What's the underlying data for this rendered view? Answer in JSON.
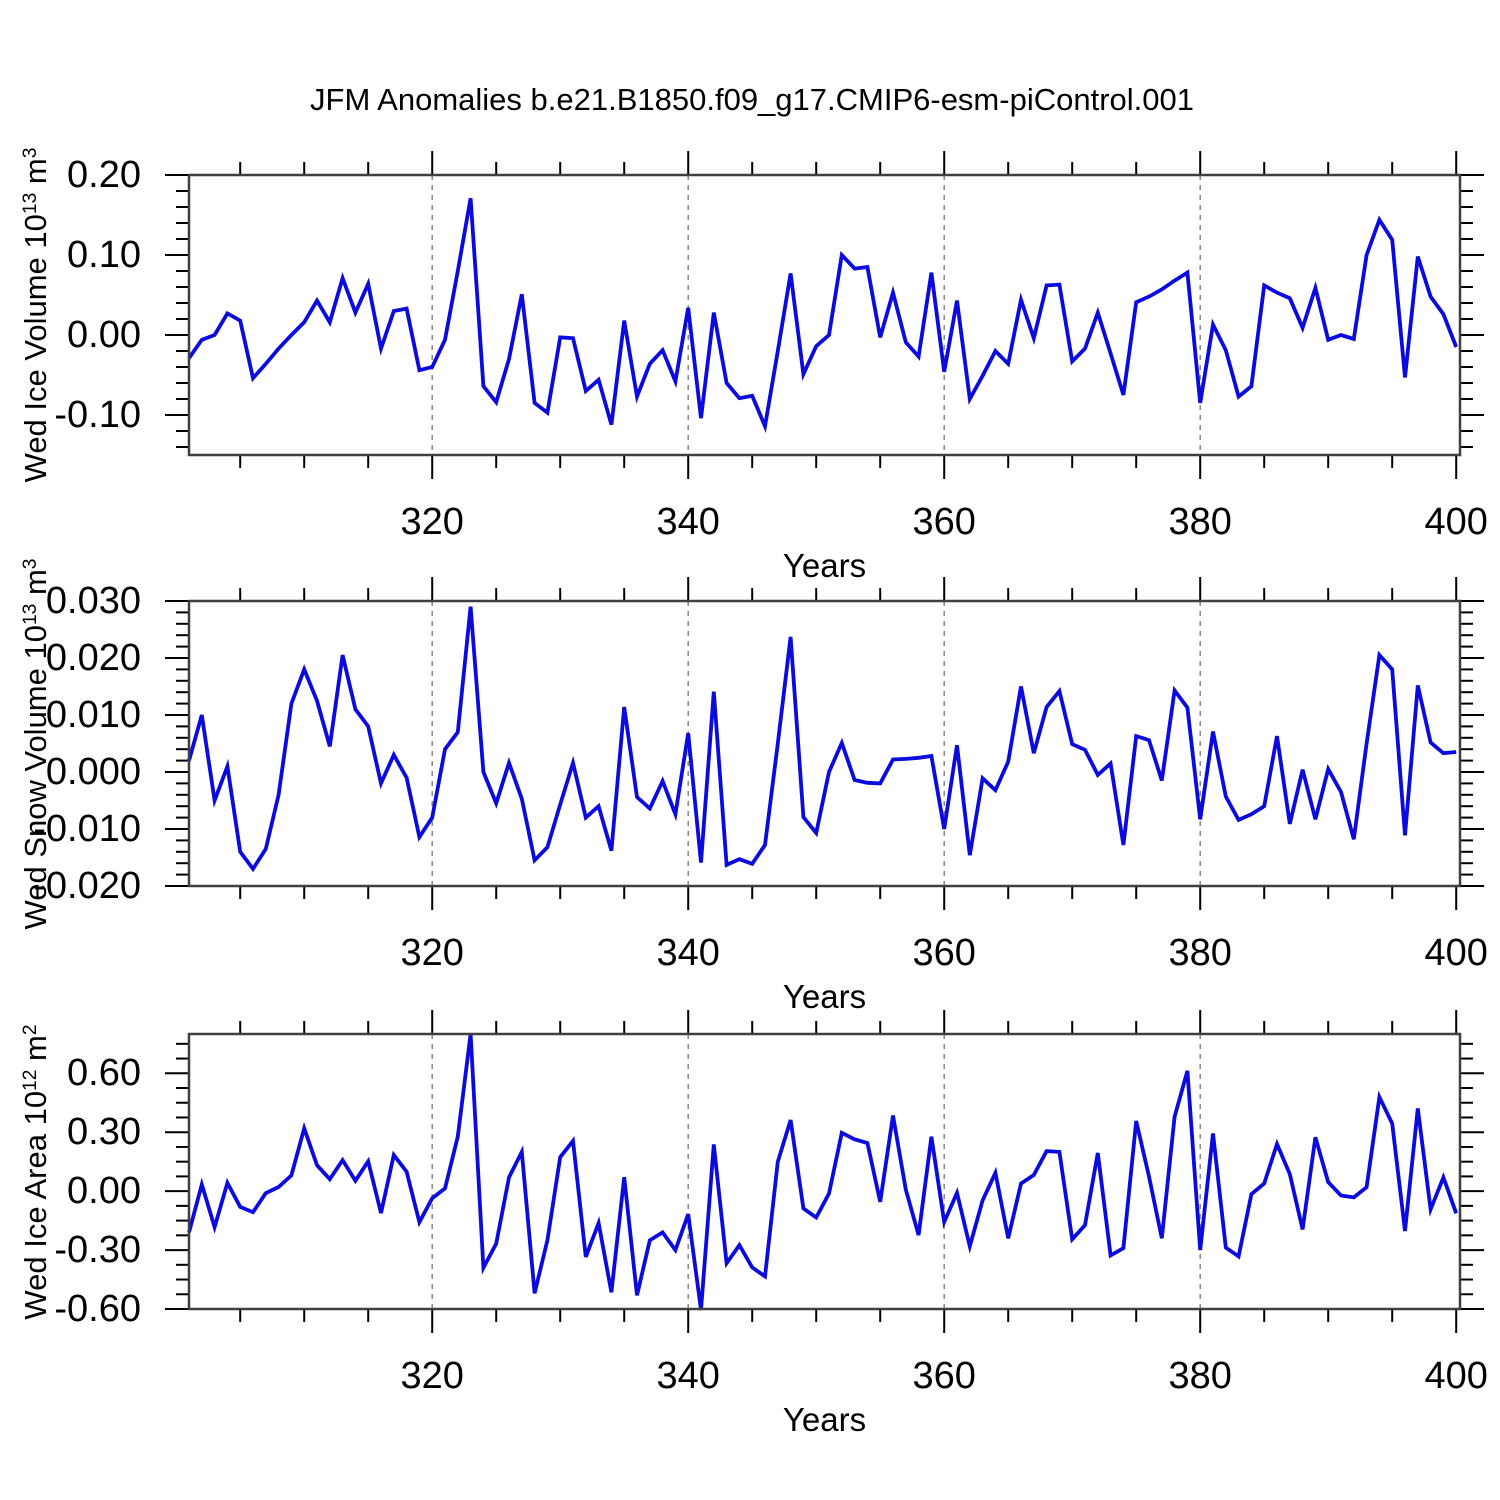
{
  "title": "JFM Anomalies b.e21.B1850.f09_g17.CMIP6-esm-piControl.001",
  "x_axis": {
    "label": "Years",
    "start_year": 301,
    "end_year": 400,
    "major_ticks": [
      320,
      340,
      360,
      380,
      400
    ],
    "major_tick_labels": [
      "320",
      "340",
      "360",
      "380",
      "400"
    ],
    "minor_tick_step": 5,
    "dashed_gridlines": [
      320,
      340,
      360,
      380
    ]
  },
  "style": {
    "line_color": "#0b0bdf",
    "frame_color": "#3f3f3f",
    "tick_color": "#000000",
    "grid_color": "#7f7f7f",
    "background": "#ffffff"
  },
  "chart_data": [
    {
      "type": "line",
      "panel": "wed_ice_volume",
      "ylabel": {
        "text": "Wed Ice Volume 10",
        "exp": "13",
        "unit": " m",
        "unit_exp": "3"
      },
      "xlabel": "Years",
      "ylim": [
        -0.15,
        0.2
      ],
      "ytick_step": 0.1,
      "yminor_step": 0.02,
      "yticks": [
        {
          "v": 0.2,
          "label": "0.20"
        },
        {
          "v": 0.1,
          "label": "0.10"
        },
        {
          "v": 0.0,
          "label": "0.00"
        },
        {
          "v": -0.1,
          "label": "-0.10"
        }
      ],
      "x_start": 301,
      "x_step": 1,
      "grid": false,
      "legend": "none",
      "values": [
        -0.029,
        -0.006,
        0.0,
        0.027,
        0.018,
        -0.054,
        -0.036,
        -0.017,
        0.0,
        0.016,
        0.043,
        0.016,
        0.071,
        0.028,
        0.064,
        -0.017,
        0.03,
        0.033,
        -0.044,
        -0.04,
        -0.006,
        0.08,
        0.171,
        -0.064,
        -0.084,
        -0.03,
        0.051,
        -0.085,
        -0.097,
        -0.003,
        -0.004,
        -0.07,
        -0.056,
        -0.112,
        0.018,
        -0.077,
        -0.036,
        -0.019,
        -0.058,
        0.034,
        -0.104,
        0.028,
        -0.06,
        -0.079,
        -0.076,
        -0.114,
        -0.02,
        0.077,
        -0.049,
        -0.014,
        0.0,
        0.1,
        0.083,
        0.085,
        -0.003,
        0.053,
        -0.009,
        -0.027,
        0.078,
        -0.046,
        0.043,
        -0.08,
        -0.051,
        -0.02,
        -0.036,
        0.044,
        -0.004,
        0.062,
        0.063,
        -0.033,
        -0.017,
        0.028,
        -0.023,
        -0.075,
        0.041,
        0.048,
        0.057,
        0.068,
        0.078,
        -0.085,
        0.013,
        -0.019,
        -0.077,
        -0.064,
        0.062,
        0.053,
        0.046,
        0.009,
        0.059,
        -0.006,
        0.0,
        -0.005,
        0.1,
        0.144,
        0.119,
        -0.053,
        0.098,
        0.048,
        0.026,
        -0.015
      ]
    },
    {
      "type": "line",
      "panel": "wed_snow_volume",
      "ylabel": {
        "text": "Wed Snow Volume 10",
        "exp": "13",
        "unit": " m",
        "unit_exp": "3"
      },
      "xlabel": "Years",
      "ylim": [
        -0.02,
        0.03
      ],
      "ytick_step": 0.01,
      "yminor_step": 0.002,
      "yticks": [
        {
          "v": 0.03,
          "label": "0.030"
        },
        {
          "v": 0.02,
          "label": "0.020"
        },
        {
          "v": 0.01,
          "label": "0.010"
        },
        {
          "v": 0.0,
          "label": "0.000"
        },
        {
          "v": -0.01,
          "label": "-0.010"
        },
        {
          "v": -0.02,
          "label": "-0.020"
        }
      ],
      "x_start": 301,
      "x_step": 1,
      "grid": false,
      "legend": "none",
      "values": [
        0.002,
        0.01,
        -0.005,
        0.001,
        -0.014,
        -0.017,
        -0.0135,
        -0.004,
        0.012,
        0.018,
        0.0125,
        0.0045,
        0.0205,
        0.011,
        0.008,
        -0.002,
        0.003,
        -0.001,
        -0.0114,
        -0.008,
        0.004,
        0.007,
        0.029,
        0.0,
        -0.0055,
        0.0016,
        -0.0047,
        -0.0155,
        -0.0132,
        -0.0057,
        0.0016,
        -0.008,
        -0.006,
        -0.0138,
        0.0114,
        -0.0044,
        -0.0064,
        -0.0016,
        -0.0074,
        0.0068,
        -0.0159,
        0.0141,
        -0.0163,
        -0.0153,
        -0.0161,
        -0.0128,
        0.005,
        0.0237,
        -0.0079,
        -0.0107,
        0.0,
        0.0051,
        -0.0014,
        -0.0019,
        -0.002,
        0.0022,
        0.0023,
        0.0025,
        0.0028,
        -0.01,
        0.0047,
        -0.0146,
        -0.0011,
        -0.0032,
        0.0018,
        0.015,
        0.0033,
        0.0114,
        0.0142,
        0.0049,
        0.0039,
        -0.0005,
        0.0015,
        -0.0128,
        0.0063,
        0.0056,
        -0.0015,
        0.0143,
        0.0113,
        -0.0083,
        0.0071,
        -0.0043,
        -0.0084,
        -0.0074,
        -0.006,
        0.0063,
        -0.0091,
        0.0004,
        -0.0083,
        0.0005,
        -0.0035,
        -0.0118,
        0.005,
        0.0205,
        0.018,
        -0.0111,
        0.0152,
        0.0052,
        0.0033,
        0.0035
      ]
    },
    {
      "type": "line",
      "panel": "wed_ice_area",
      "ylabel": {
        "text": "Wed Ice Area 10",
        "exp": "12",
        "unit": " m",
        "unit_exp": "2"
      },
      "xlabel": "Years",
      "ylim": [
        -0.6,
        0.8
      ],
      "ytick_step": 0.3,
      "yminor_step": 0.075,
      "yticks": [
        {
          "v": 0.6,
          "label": "0.60"
        },
        {
          "v": 0.3,
          "label": "0.30"
        },
        {
          "v": 0.0,
          "label": "0.00"
        },
        {
          "v": -0.3,
          "label": "-0.30"
        },
        {
          "v": -0.6,
          "label": "-0.60"
        }
      ],
      "x_start": 301,
      "x_step": 1,
      "grid": false,
      "legend": "none",
      "values": [
        -0.21,
        0.034,
        -0.183,
        0.042,
        -0.08,
        -0.107,
        -0.01,
        0.021,
        0.08,
        0.32,
        0.132,
        0.061,
        0.158,
        0.053,
        0.152,
        -0.112,
        0.184,
        0.099,
        -0.158,
        -0.036,
        0.014,
        0.278,
        0.8,
        -0.39,
        -0.267,
        0.07,
        0.2,
        -0.52,
        -0.25,
        0.173,
        0.256,
        -0.335,
        -0.162,
        -0.515,
        0.071,
        -0.53,
        -0.25,
        -0.21,
        -0.3,
        -0.117,
        -0.605,
        0.238,
        -0.367,
        -0.275,
        -0.388,
        -0.434,
        0.15,
        0.362,
        -0.088,
        -0.134,
        -0.012,
        0.297,
        0.264,
        0.245,
        -0.055,
        0.385,
        0.008,
        -0.224,
        0.277,
        -0.157,
        -0.009,
        -0.281,
        -0.047,
        0.093,
        -0.24,
        0.039,
        0.082,
        0.204,
        0.2,
        -0.245,
        -0.173,
        0.194,
        -0.327,
        -0.29,
        0.357,
        0.074,
        -0.24,
        0.379,
        0.612,
        -0.3,
        0.294,
        -0.287,
        -0.332,
        -0.015,
        0.039,
        0.24,
        0.087,
        -0.195,
        0.274,
        0.046,
        -0.022,
        -0.032,
        0.02,
        0.479,
        0.344,
        -0.203,
        0.421,
        -0.093,
        0.07,
        -0.113
      ]
    }
  ]
}
